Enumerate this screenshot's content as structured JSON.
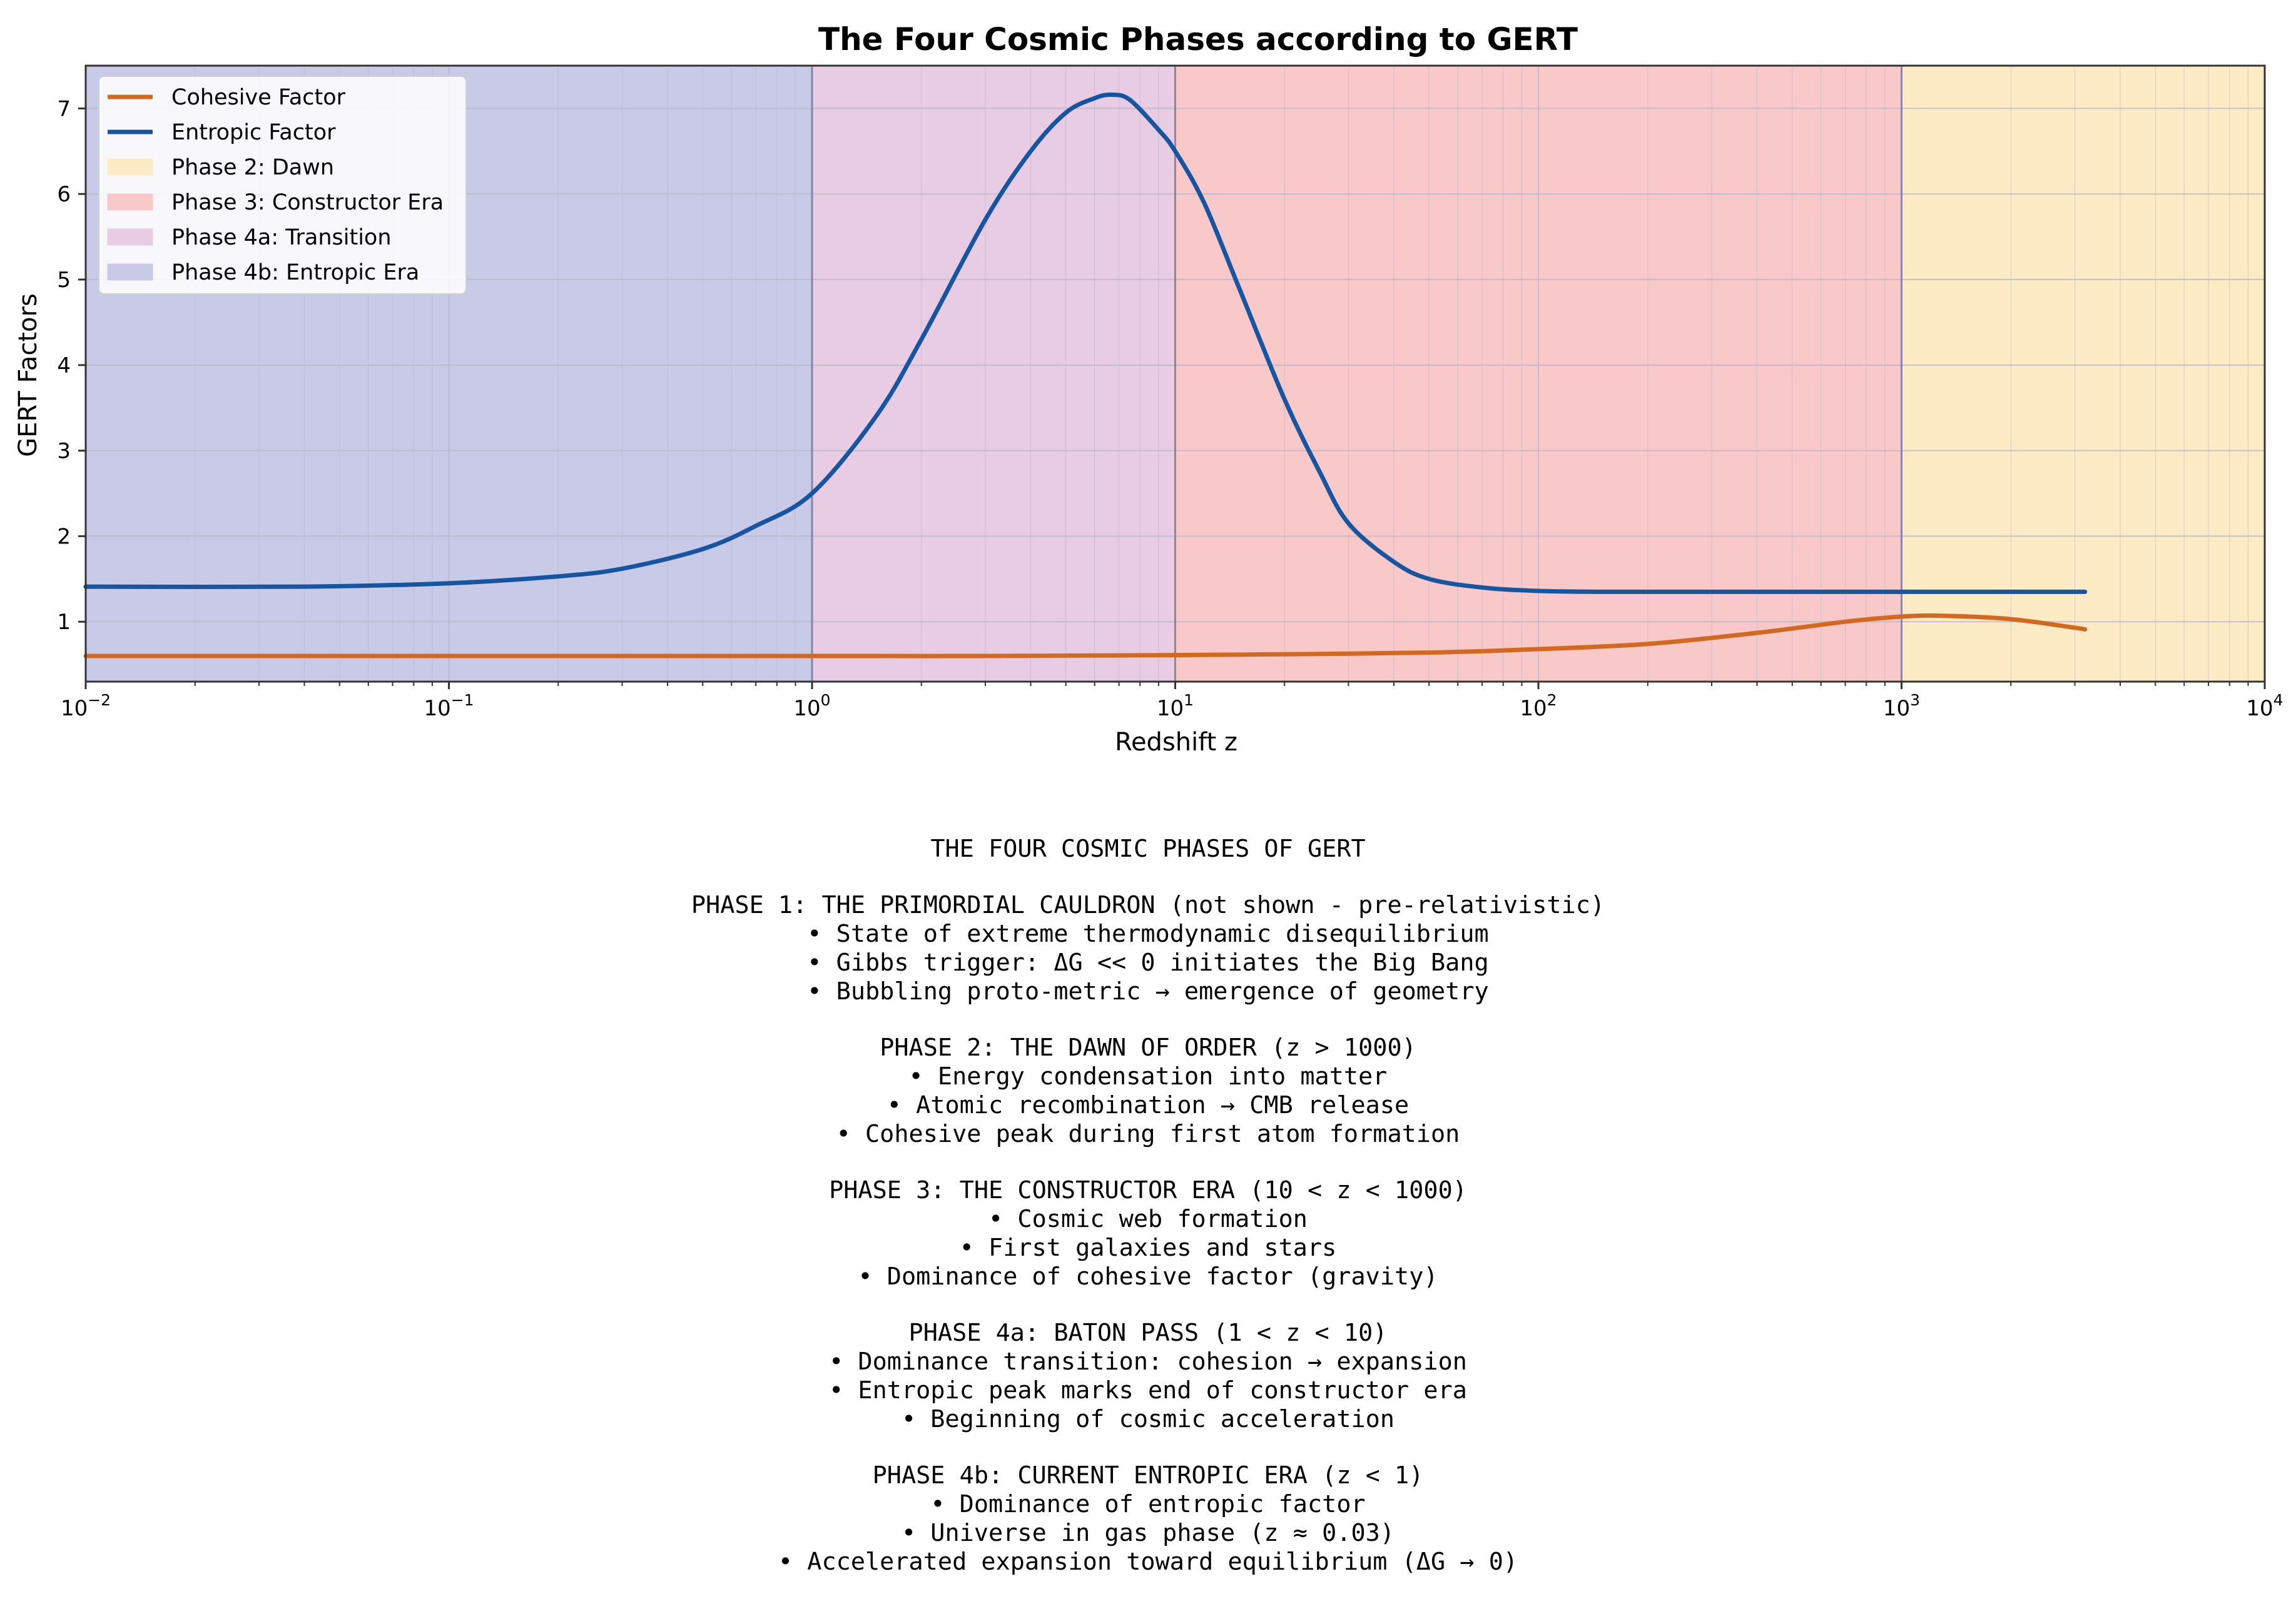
{
  "colors": {
    "cohesive": "#d2691e",
    "entropic": "#1655a0",
    "phase2_dawn": "#fdebc6",
    "phase3_constructor": "#f9c8c8",
    "phase4a_transition": "#e7cce3",
    "phase4b_entropic": "#c9c9e8",
    "grid": "#b8b8c8"
  },
  "chart_data": {
    "type": "line",
    "title": "The Four Cosmic Phases according to GERT",
    "xlabel": "Redshift z",
    "ylabel": "GERT Factors",
    "xscale": "log",
    "xlim": [
      0.01,
      10000
    ],
    "ylim": [
      0.3,
      7.5
    ],
    "grid": true,
    "legend_position": "top-left",
    "x_ticks": [
      {
        "value": 0.01,
        "base": "10",
        "exp": "−2"
      },
      {
        "value": 0.1,
        "base": "10",
        "exp": "−1"
      },
      {
        "value": 1,
        "base": "10",
        "exp": "0"
      },
      {
        "value": 10,
        "base": "10",
        "exp": "1"
      },
      {
        "value": 100,
        "base": "10",
        "exp": "2"
      },
      {
        "value": 1000,
        "base": "10",
        "exp": "3"
      },
      {
        "value": 10000,
        "base": "10",
        "exp": "4"
      }
    ],
    "y_ticks": [
      1,
      2,
      3,
      4,
      5,
      6,
      7
    ],
    "regions": [
      {
        "name": "Phase 4b: Entropic Era",
        "x0": 0.01,
        "x1": 1,
        "color": "#c9c9e8"
      },
      {
        "name": "Phase 4a: Transition",
        "x0": 1,
        "x1": 10,
        "color": "#e7cce3"
      },
      {
        "name": "Phase 3: Constructor Era",
        "x0": 10,
        "x1": 1000,
        "color": "#f9c8c8"
      },
      {
        "name": "Phase 2: Dawn",
        "x0": 1000,
        "x1": 10000,
        "color": "#fdebc6"
      }
    ],
    "region_boundaries": [
      1,
      10,
      1000
    ],
    "series": [
      {
        "name": "Cohesive Factor",
        "color": "#d2691e",
        "x": [
          0.01,
          0.1,
          1,
          3,
          10,
          20,
          50,
          100,
          200,
          400,
          700,
          1000,
          1300,
          2000,
          3000,
          3200
        ],
        "y": [
          0.6,
          0.6,
          0.6,
          0.6,
          0.61,
          0.62,
          0.64,
          0.68,
          0.74,
          0.87,
          1.0,
          1.06,
          1.07,
          1.03,
          0.93,
          0.91
        ]
      },
      {
        "name": "Entropic Factor",
        "color": "#1655a0",
        "x": [
          0.01,
          0.04,
          0.1,
          0.2,
          0.3,
          0.5,
          0.7,
          1.0,
          1.5,
          2,
          3,
          4,
          5,
          6,
          6.7,
          7.5,
          9,
          10,
          12,
          15,
          20,
          25,
          30,
          40,
          50,
          70,
          100,
          150,
          300,
          1000,
          3200
        ],
        "y": [
          1.41,
          1.41,
          1.45,
          1.53,
          1.62,
          1.85,
          2.12,
          2.5,
          3.4,
          4.3,
          5.7,
          6.5,
          6.95,
          7.12,
          7.16,
          7.1,
          6.75,
          6.5,
          5.9,
          4.9,
          3.6,
          2.75,
          2.15,
          1.7,
          1.5,
          1.4,
          1.36,
          1.35,
          1.35,
          1.35,
          1.35
        ]
      }
    ],
    "legend": [
      {
        "label": "Cohesive Factor",
        "kind": "line",
        "color": "#d2691e"
      },
      {
        "label": "Entropic Factor",
        "kind": "line",
        "color": "#1655a0"
      },
      {
        "label": "Phase 2: Dawn",
        "kind": "patch",
        "color": "#fdebc6"
      },
      {
        "label": "Phase 3: Constructor Era",
        "kind": "patch",
        "color": "#f9c8c8"
      },
      {
        "label": "Phase 4a: Transition",
        "kind": "patch",
        "color": "#e7cce3"
      },
      {
        "label": "Phase 4b: Entropic Era",
        "kind": "patch",
        "color": "#c9c9e8"
      }
    ]
  },
  "text_panel": {
    "heading": "THE FOUR COSMIC PHASES OF GERT",
    "sections": [
      {
        "title": "PHASE 1: THE PRIMORDIAL CAULDRON (not shown - pre-relativistic)",
        "items": [
          "• State of extreme thermodynamic disequilibrium",
          "• Gibbs trigger: ΔG << 0 initiates the Big Bang",
          "• Bubbling proto-metric → emergence of geometry"
        ]
      },
      {
        "title": "PHASE 2: THE DAWN OF ORDER (z > 1000)",
        "items": [
          "• Energy condensation into matter",
          "• Atomic recombination → CMB release",
          "• Cohesive peak during first atom formation"
        ]
      },
      {
        "title": "PHASE 3: THE CONSTRUCTOR ERA (10 < z < 1000)",
        "items": [
          "• Cosmic web formation",
          "• First galaxies and stars",
          "• Dominance of cohesive factor (gravity)"
        ]
      },
      {
        "title": "PHASE 4a: BATON PASS (1 < z < 10)",
        "items": [
          "• Dominance transition: cohesion → expansion",
          "• Entropic peak marks end of constructor era",
          "• Beginning of cosmic acceleration"
        ]
      },
      {
        "title": "PHASE 4b: CURRENT ENTROPIC ERA (z < 1)",
        "items": [
          "• Dominance of entropic factor",
          "• Universe in gas phase (z ≈ 0.03)",
          "• Accelerated expansion toward equilibrium (ΔG → 0)"
        ]
      }
    ]
  }
}
